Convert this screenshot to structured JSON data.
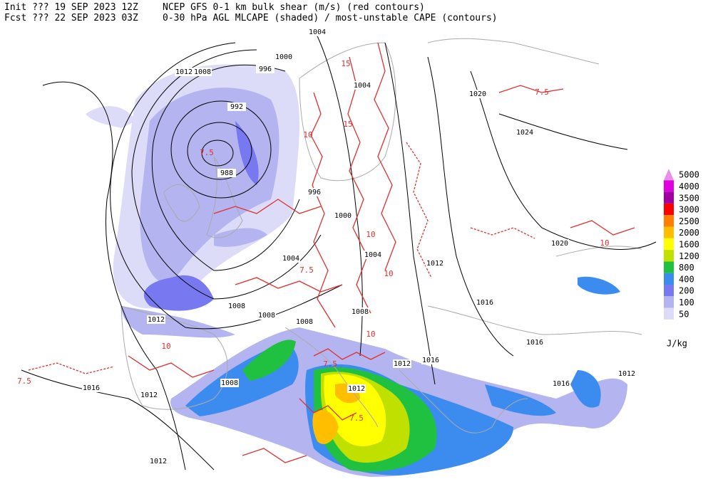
{
  "header": {
    "init": "Init  ??? 19 SEP 2023 12Z",
    "fcst": "Fcst ??? 22 SEP 2023 03Z",
    "product1": "NCEP GFS 0-1 km bulk shear (m/s) (red contours)",
    "product2": "0-30 hPa AGL MLCAPE (shaded) / most-unstable CAPE (contours)"
  },
  "legend": {
    "unit": "J/kg",
    "items": [
      {
        "label": 5000,
        "color": "#e890e8"
      },
      {
        "label": 4000,
        "color": "#e000e0"
      },
      {
        "label": 3500,
        "color": "#a000a0"
      },
      {
        "label": 3000,
        "color": "#ff0000"
      },
      {
        "label": 2500,
        "color": "#ff8000"
      },
      {
        "label": 2000,
        "color": "#ffbf00"
      },
      {
        "label": 1600,
        "color": "#ffff00"
      },
      {
        "label": 1200,
        "color": "#c0e000"
      },
      {
        "label": 800,
        "color": "#20c040"
      },
      {
        "label": 400,
        "color": "#3c8cf0"
      },
      {
        "label": 200,
        "color": "#7878f0"
      },
      {
        "label": 100,
        "color": "#b4b4f0"
      },
      {
        "label": 50,
        "color": "#dcdcf8"
      }
    ]
  },
  "isobar_labels": [
    "1004",
    "1000",
    "1012",
    "1008",
    "996",
    "992",
    "988",
    "996",
    "1000",
    "1004",
    "1020",
    "1024",
    "1020",
    "1004",
    "1004",
    "1012",
    "1016",
    "1008",
    "1008",
    "1012",
    "1008",
    "1008",
    "1016",
    "1016",
    "1012",
    "1008",
    "1012",
    "1016",
    "1012",
    "1016",
    "1012",
    "1012"
  ],
  "shear_labels": [
    "7.5",
    "10",
    "15",
    "10",
    "7.5",
    "10",
    "7.5",
    "10",
    "7.5",
    "7.5",
    "10",
    "15",
    "7.5",
    "10"
  ]
}
